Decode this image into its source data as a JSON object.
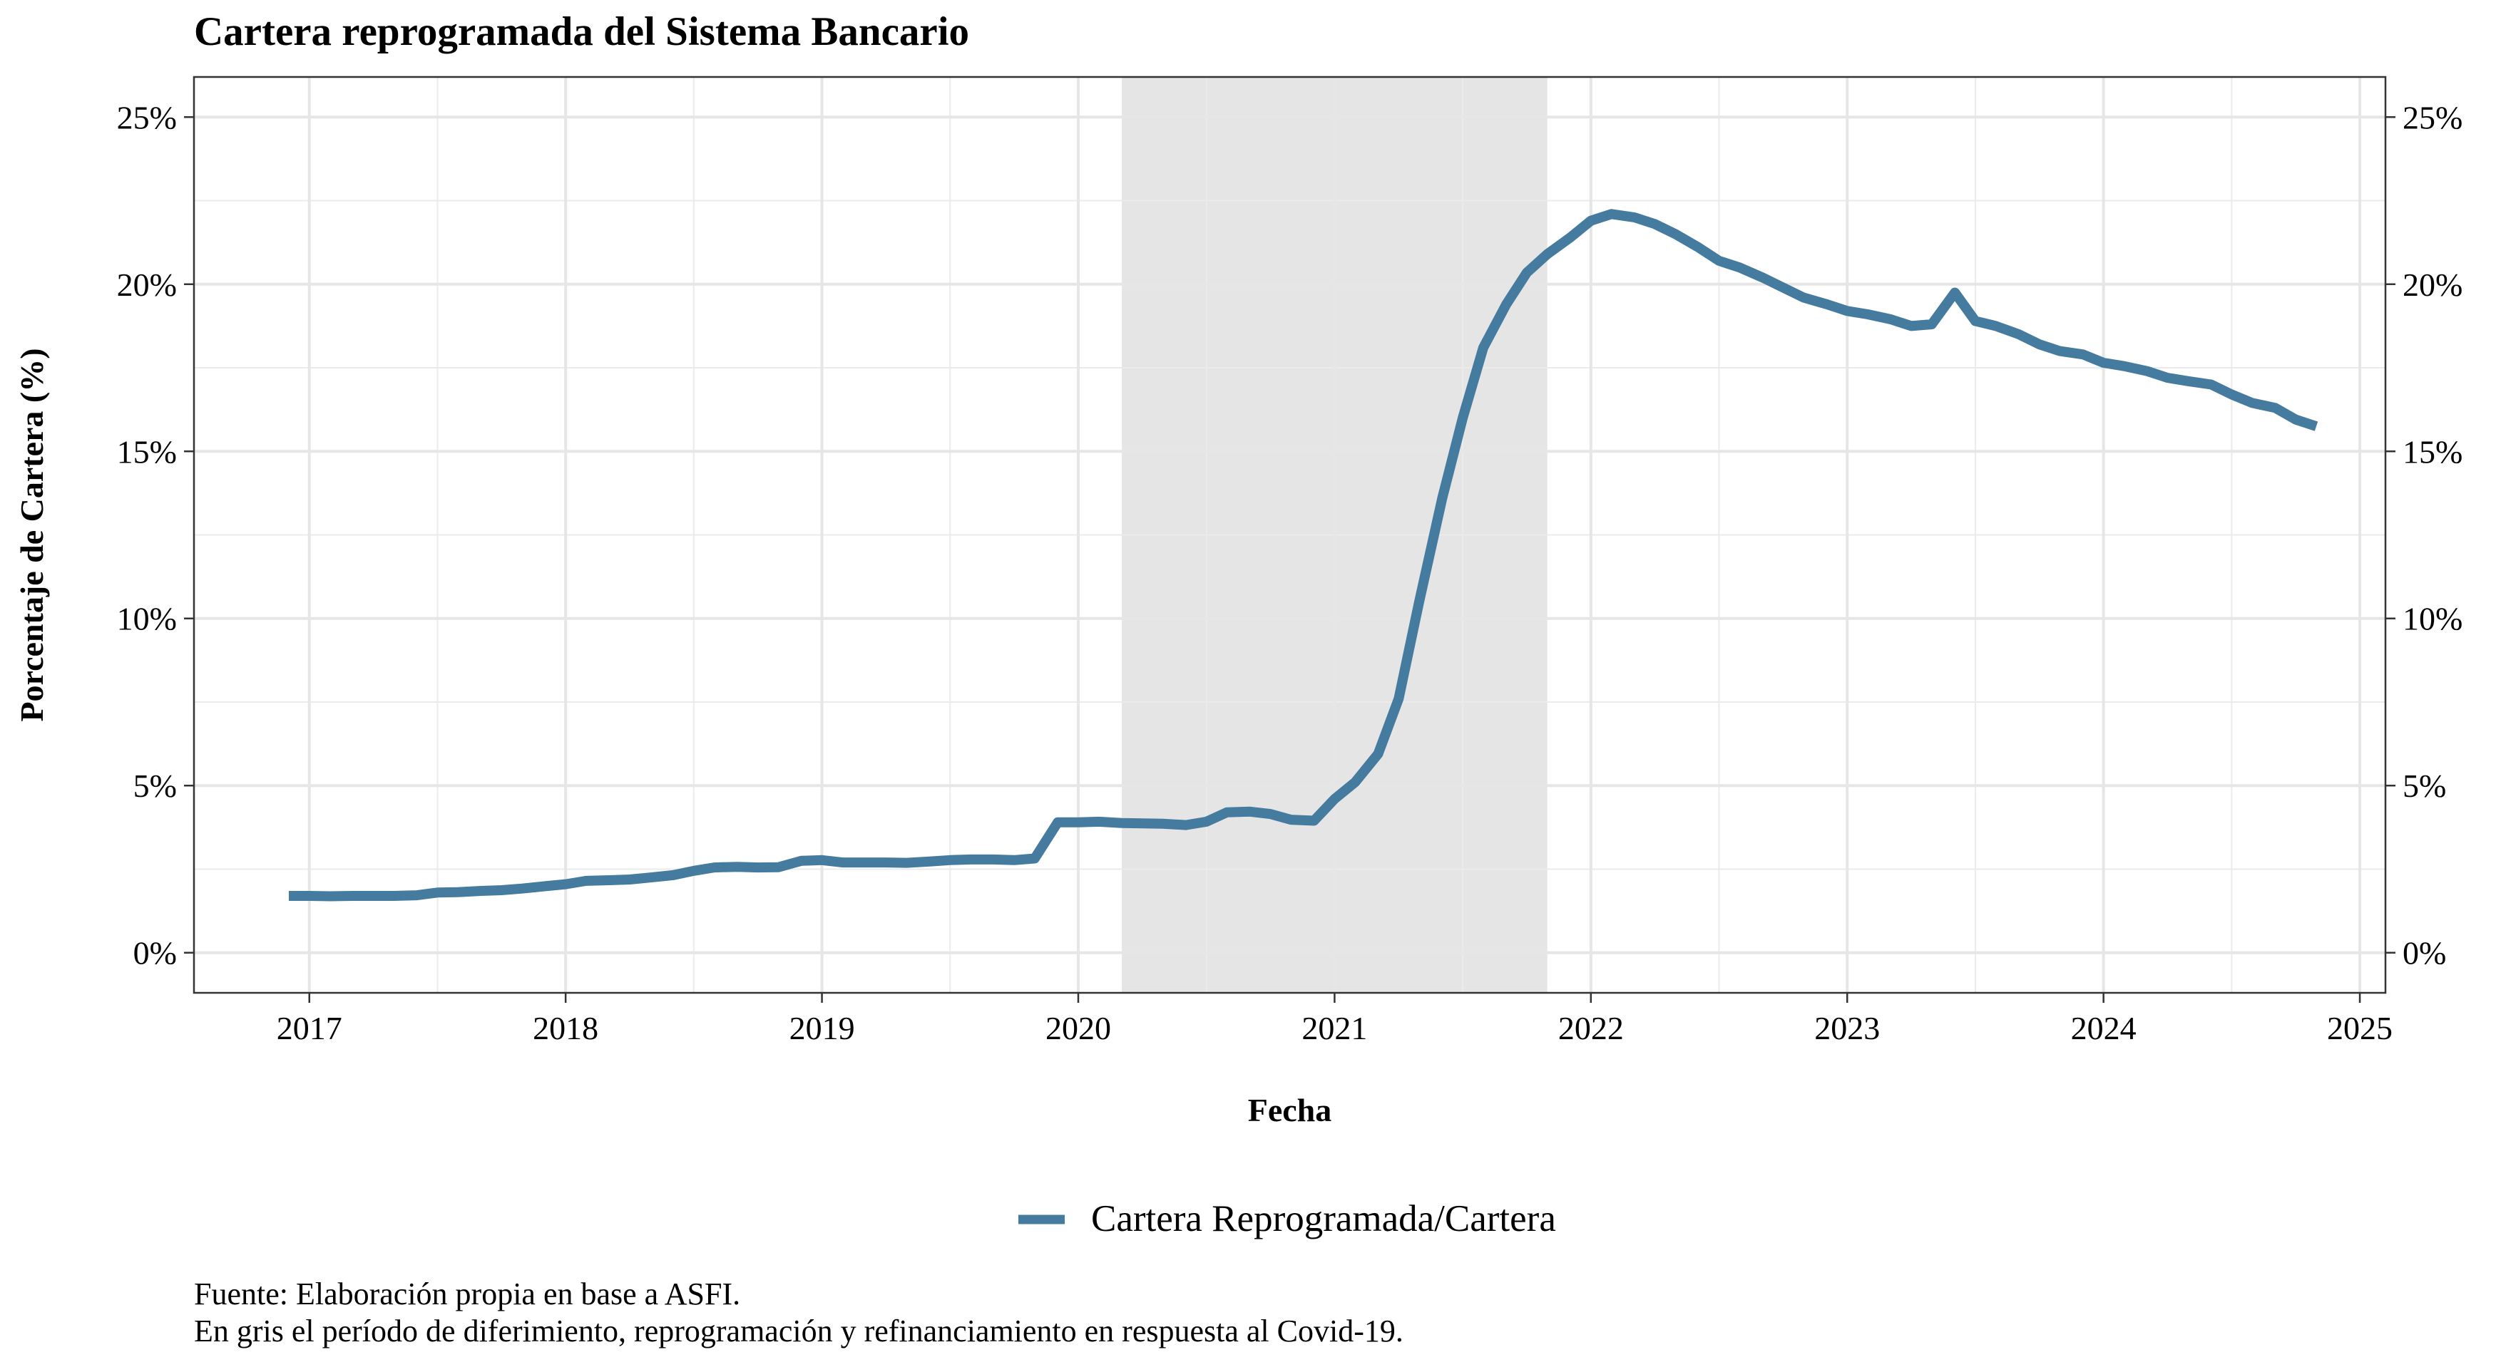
{
  "chart_data": {
    "type": "line",
    "title": "Cartera reprogramada del Sistema Bancario",
    "xlabel": "Fecha",
    "ylabel": "Porcentaje de Cartera (%)",
    "xlim": [
      2016.55,
      2025.1
    ],
    "ylim": [
      -1.2,
      26.2
    ],
    "x_ticks": [
      2017,
      2018,
      2019,
      2020,
      2021,
      2022,
      2023,
      2024,
      2025
    ],
    "y_ticks": [
      0,
      5,
      10,
      15,
      20,
      25
    ],
    "y_tick_labels": [
      "0%",
      "5%",
      "10%",
      "15%",
      "20%",
      "25%"
    ],
    "y_axis_mirrored_right": true,
    "grid": true,
    "legend_position": "bottom",
    "shaded_period": {
      "start": 2020.17,
      "end": 2021.83,
      "color": "#e5e5e5"
    },
    "series": [
      {
        "name": "Cartera Reprogramada/Cartera",
        "color": "#447b9e",
        "points": [
          [
            2016.92,
            1.7
          ],
          [
            2017.0,
            1.7
          ],
          [
            2017.08,
            1.69
          ],
          [
            2017.17,
            1.7
          ],
          [
            2017.25,
            1.7
          ],
          [
            2017.33,
            1.7
          ],
          [
            2017.42,
            1.72
          ],
          [
            2017.5,
            1.8
          ],
          [
            2017.58,
            1.81
          ],
          [
            2017.67,
            1.85
          ],
          [
            2017.75,
            1.87
          ],
          [
            2017.83,
            1.92
          ],
          [
            2017.92,
            1.99
          ],
          [
            2018.0,
            2.05
          ],
          [
            2018.08,
            2.15
          ],
          [
            2018.17,
            2.17
          ],
          [
            2018.25,
            2.19
          ],
          [
            2018.33,
            2.25
          ],
          [
            2018.42,
            2.32
          ],
          [
            2018.5,
            2.45
          ],
          [
            2018.58,
            2.55
          ],
          [
            2018.67,
            2.57
          ],
          [
            2018.75,
            2.55
          ],
          [
            2018.83,
            2.56
          ],
          [
            2018.92,
            2.75
          ],
          [
            2019.0,
            2.77
          ],
          [
            2019.08,
            2.7
          ],
          [
            2019.17,
            2.7
          ],
          [
            2019.25,
            2.7
          ],
          [
            2019.33,
            2.69
          ],
          [
            2019.42,
            2.73
          ],
          [
            2019.5,
            2.77
          ],
          [
            2019.58,
            2.79
          ],
          [
            2019.67,
            2.79
          ],
          [
            2019.75,
            2.77
          ],
          [
            2019.83,
            2.82
          ],
          [
            2019.92,
            3.9
          ],
          [
            2020.0,
            3.9
          ],
          [
            2020.08,
            3.92
          ],
          [
            2020.17,
            3.88
          ],
          [
            2020.25,
            3.87
          ],
          [
            2020.33,
            3.86
          ],
          [
            2020.42,
            3.82
          ],
          [
            2020.5,
            3.92
          ],
          [
            2020.58,
            4.2
          ],
          [
            2020.67,
            4.22
          ],
          [
            2020.75,
            4.15
          ],
          [
            2020.83,
            3.98
          ],
          [
            2020.92,
            3.95
          ],
          [
            2021.0,
            4.6
          ],
          [
            2021.08,
            5.1
          ],
          [
            2021.17,
            5.95
          ],
          [
            2021.25,
            7.6
          ],
          [
            2021.33,
            10.5
          ],
          [
            2021.42,
            13.6
          ],
          [
            2021.5,
            16.0
          ],
          [
            2021.58,
            18.1
          ],
          [
            2021.67,
            19.4
          ],
          [
            2021.75,
            20.35
          ],
          [
            2021.83,
            20.9
          ],
          [
            2021.92,
            21.4
          ],
          [
            2022.0,
            21.9
          ],
          [
            2022.08,
            22.1
          ],
          [
            2022.17,
            22.0
          ],
          [
            2022.25,
            21.8
          ],
          [
            2022.33,
            21.5
          ],
          [
            2022.42,
            21.1
          ],
          [
            2022.5,
            20.7
          ],
          [
            2022.58,
            20.5
          ],
          [
            2022.67,
            20.2
          ],
          [
            2022.75,
            19.9
          ],
          [
            2022.83,
            19.6
          ],
          [
            2022.92,
            19.4
          ],
          [
            2023.0,
            19.2
          ],
          [
            2023.08,
            19.1
          ],
          [
            2023.17,
            18.95
          ],
          [
            2023.25,
            18.75
          ],
          [
            2023.33,
            18.8
          ],
          [
            2023.42,
            19.75
          ],
          [
            2023.5,
            18.9
          ],
          [
            2023.58,
            18.75
          ],
          [
            2023.67,
            18.5
          ],
          [
            2023.75,
            18.2
          ],
          [
            2023.83,
            18.0
          ],
          [
            2023.92,
            17.9
          ],
          [
            2024.0,
            17.65
          ],
          [
            2024.08,
            17.55
          ],
          [
            2024.17,
            17.4
          ],
          [
            2024.25,
            17.2
          ],
          [
            2024.33,
            17.1
          ],
          [
            2024.42,
            17.0
          ],
          [
            2024.5,
            16.7
          ],
          [
            2024.58,
            16.45
          ],
          [
            2024.67,
            16.3
          ],
          [
            2024.75,
            15.95
          ],
          [
            2024.83,
            15.75
          ]
        ]
      }
    ]
  },
  "captions": {
    "source": "Fuente: Elaboración propia en base a ASFI.",
    "note": "En gris el período de diferimiento, reprogramación y refinanciamiento en respuesta al Covid-19."
  }
}
